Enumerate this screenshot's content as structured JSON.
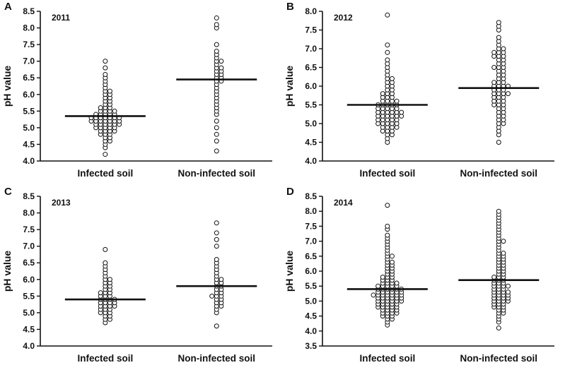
{
  "figure": {
    "background": "#ffffff",
    "ink": "#111111",
    "point_fill": "#ffffff"
  },
  "chart_data": [
    {
      "type": "scatter",
      "panel": "A",
      "year": "2011",
      "ylabel": "pH value",
      "categories": [
        "Infected soil",
        "Non-infected soil"
      ],
      "ylim": [
        4.0,
        8.5
      ],
      "yticks": [
        "4.0",
        "4.5",
        "5.0",
        "5.5",
        "6.0",
        "6.5",
        "7.0",
        "7.5",
        "8.0",
        "8.5"
      ],
      "grid": "off",
      "legend": "none",
      "means": [
        5.35,
        6.45
      ],
      "series": [
        {
          "name": "Infected soil",
          "values": [
            4.2,
            4.4,
            4.5,
            4.6,
            4.6,
            4.7,
            4.7,
            4.8,
            4.8,
            4.8,
            4.9,
            4.9,
            4.9,
            4.9,
            5.0,
            5.0,
            5.0,
            5.0,
            5.0,
            5.1,
            5.1,
            5.1,
            5.1,
            5.1,
            5.1,
            5.2,
            5.2,
            5.2,
            5.2,
            5.2,
            5.2,
            5.2,
            5.3,
            5.3,
            5.3,
            5.3,
            5.3,
            5.3,
            5.3,
            5.4,
            5.4,
            5.4,
            5.4,
            5.4,
            5.5,
            5.5,
            5.5,
            5.5,
            5.6,
            5.6,
            5.6,
            5.7,
            5.7,
            5.8,
            5.8,
            5.9,
            5.9,
            6.0,
            6.0,
            6.1,
            6.1,
            6.2,
            6.3,
            6.4,
            6.5,
            6.6,
            6.8,
            7.0
          ]
        },
        {
          "name": "Non-infected soil",
          "values": [
            4.3,
            4.6,
            4.8,
            5.0,
            5.2,
            5.4,
            5.5,
            5.6,
            5.7,
            5.8,
            5.9,
            6.0,
            6.1,
            6.2,
            6.3,
            6.4,
            6.4,
            6.5,
            6.5,
            6.6,
            6.6,
            6.7,
            6.7,
            6.8,
            6.8,
            6.9,
            7.0,
            7.0,
            7.1,
            7.2,
            7.3,
            7.5,
            8.0,
            8.1,
            8.3
          ]
        }
      ]
    },
    {
      "type": "scatter",
      "panel": "B",
      "year": "2012",
      "ylabel": "pH value",
      "categories": [
        "Infected soil",
        "Non-infected soil"
      ],
      "ylim": [
        4.0,
        8.0
      ],
      "yticks": [
        "4.0",
        "4.5",
        "5.0",
        "5.5",
        "6.0",
        "6.5",
        "7.0",
        "7.5",
        "8.0"
      ],
      "grid": "off",
      "legend": "none",
      "means": [
        5.5,
        5.95
      ],
      "series": [
        {
          "name": "Infected soil",
          "values": [
            4.5,
            4.6,
            4.7,
            4.7,
            4.8,
            4.8,
            4.8,
            4.9,
            4.9,
            4.9,
            4.9,
            5.0,
            5.0,
            5.0,
            5.0,
            5.0,
            5.1,
            5.1,
            5.1,
            5.1,
            5.1,
            5.2,
            5.2,
            5.2,
            5.2,
            5.2,
            5.2,
            5.3,
            5.3,
            5.3,
            5.3,
            5.3,
            5.3,
            5.4,
            5.4,
            5.4,
            5.4,
            5.4,
            5.5,
            5.5,
            5.5,
            5.5,
            5.5,
            5.6,
            5.6,
            5.6,
            5.6,
            5.7,
            5.7,
            5.7,
            5.8,
            5.8,
            5.8,
            5.9,
            5.9,
            6.0,
            6.0,
            6.1,
            6.1,
            6.2,
            6.2,
            6.3,
            6.4,
            6.5,
            6.6,
            6.7,
            6.9,
            7.1,
            7.9
          ]
        },
        {
          "name": "Non-infected soil",
          "values": [
            4.5,
            4.7,
            4.8,
            4.9,
            5.0,
            5.0,
            5.1,
            5.1,
            5.2,
            5.2,
            5.3,
            5.3,
            5.4,
            5.4,
            5.5,
            5.5,
            5.5,
            5.6,
            5.6,
            5.6,
            5.7,
            5.7,
            5.7,
            5.8,
            5.8,
            5.8,
            5.8,
            5.9,
            5.9,
            5.9,
            6.0,
            6.0,
            6.0,
            6.0,
            6.1,
            6.1,
            6.1,
            6.2,
            6.2,
            6.3,
            6.3,
            6.4,
            6.4,
            6.5,
            6.5,
            6.5,
            6.6,
            6.6,
            6.7,
            6.7,
            6.8,
            6.8,
            6.8,
            6.9,
            6.9,
            6.9,
            7.0,
            7.0,
            7.1,
            7.2,
            7.3,
            7.5,
            7.6,
            7.7
          ]
        }
      ]
    },
    {
      "type": "scatter",
      "panel": "C",
      "year": "2013",
      "ylabel": "pH value",
      "categories": [
        "Infected soil",
        "Non-infected soil"
      ],
      "ylim": [
        4.0,
        8.5
      ],
      "yticks": [
        "4.0",
        "4.5",
        "5.0",
        "5.5",
        "6.0",
        "6.5",
        "7.0",
        "7.5",
        "8.0",
        "8.5"
      ],
      "grid": "off",
      "legend": "none",
      "means": [
        5.4,
        5.8
      ],
      "series": [
        {
          "name": "Infected soil",
          "values": [
            4.7,
            4.8,
            4.8,
            4.9,
            4.9,
            5.0,
            5.0,
            5.0,
            5.1,
            5.1,
            5.1,
            5.2,
            5.2,
            5.2,
            5.2,
            5.3,
            5.3,
            5.3,
            5.3,
            5.4,
            5.4,
            5.4,
            5.4,
            5.5,
            5.5,
            5.5,
            5.6,
            5.6,
            5.6,
            5.7,
            5.7,
            5.8,
            5.8,
            5.9,
            5.9,
            6.0,
            6.0,
            6.1,
            6.2,
            6.3,
            6.4,
            6.5,
            6.9
          ]
        },
        {
          "name": "Non-infected soil",
          "values": [
            4.6,
            5.0,
            5.1,
            5.2,
            5.2,
            5.3,
            5.3,
            5.4,
            5.4,
            5.5,
            5.5,
            5.5,
            5.6,
            5.6,
            5.7,
            5.7,
            5.8,
            5.8,
            5.9,
            5.9,
            6.0,
            6.0,
            6.1,
            6.2,
            6.3,
            6.4,
            6.5,
            6.6,
            7.0,
            7.2,
            7.4,
            7.7
          ]
        }
      ]
    },
    {
      "type": "scatter",
      "panel": "D",
      "year": "2014",
      "ylabel": "pH value",
      "categories": [
        "Infected soil",
        "Non-infected soil"
      ],
      "ylim": [
        3.5,
        8.5
      ],
      "yticks": [
        "3.5",
        "4.0",
        "4.5",
        "5.0",
        "5.5",
        "6.0",
        "6.5",
        "7.0",
        "7.5",
        "8.0",
        "8.5"
      ],
      "grid": "off",
      "legend": "none",
      "means": [
        5.4,
        5.7
      ],
      "series": [
        {
          "name": "Infected soil",
          "values": [
            4.2,
            4.3,
            4.4,
            4.4,
            4.5,
            4.5,
            4.5,
            4.6,
            4.6,
            4.6,
            4.6,
            4.7,
            4.7,
            4.7,
            4.7,
            4.8,
            4.8,
            4.8,
            4.8,
            4.8,
            4.9,
            4.9,
            4.9,
            4.9,
            4.9,
            5.0,
            5.0,
            5.0,
            5.0,
            5.0,
            5.0,
            5.1,
            5.1,
            5.1,
            5.1,
            5.1,
            5.1,
            5.2,
            5.2,
            5.2,
            5.2,
            5.2,
            5.2,
            5.2,
            5.3,
            5.3,
            5.3,
            5.3,
            5.3,
            5.3,
            5.4,
            5.4,
            5.4,
            5.4,
            5.4,
            5.4,
            5.5,
            5.5,
            5.5,
            5.5,
            5.5,
            5.6,
            5.6,
            5.6,
            5.6,
            5.7,
            5.7,
            5.7,
            5.8,
            5.8,
            5.8,
            5.9,
            5.9,
            6.0,
            6.0,
            6.1,
            6.1,
            6.2,
            6.2,
            6.3,
            6.3,
            6.4,
            6.5,
            6.5,
            6.6,
            6.7,
            6.8,
            6.9,
            7.0,
            7.1,
            7.2,
            7.4,
            7.5,
            8.2
          ]
        },
        {
          "name": "Non-infected soil",
          "values": [
            4.1,
            4.3,
            4.4,
            4.5,
            4.6,
            4.6,
            4.7,
            4.7,
            4.8,
            4.8,
            4.8,
            4.9,
            4.9,
            4.9,
            5.0,
            5.0,
            5.0,
            5.0,
            5.1,
            5.1,
            5.1,
            5.1,
            5.2,
            5.2,
            5.2,
            5.2,
            5.3,
            5.3,
            5.3,
            5.3,
            5.4,
            5.4,
            5.4,
            5.5,
            5.5,
            5.5,
            5.5,
            5.6,
            5.6,
            5.6,
            5.7,
            5.7,
            5.7,
            5.8,
            5.8,
            5.8,
            5.9,
            5.9,
            6.0,
            6.0,
            6.1,
            6.1,
            6.2,
            6.2,
            6.3,
            6.3,
            6.4,
            6.4,
            6.5,
            6.5,
            6.6,
            6.6,
            6.7,
            6.8,
            6.9,
            7.0,
            7.0,
            7.1,
            7.2,
            7.3,
            7.4,
            7.5,
            7.6,
            7.7,
            7.8,
            7.9,
            8.0
          ]
        }
      ]
    }
  ]
}
